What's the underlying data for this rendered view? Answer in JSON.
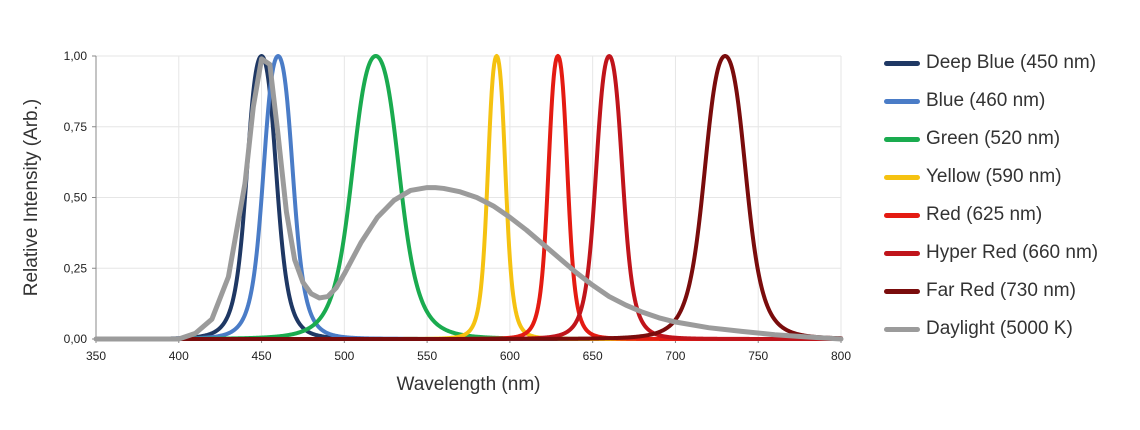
{
  "chart_data": {
    "type": "line",
    "xlabel": "Wavelength (nm)",
    "ylabel": "Relative Intensity (Arb.)",
    "xlim": [
      350,
      800
    ],
    "ylim": [
      0,
      1
    ],
    "x_ticks": [
      350,
      400,
      450,
      500,
      550,
      600,
      650,
      700,
      750,
      800
    ],
    "y_ticks": [
      "0,00",
      "0,25",
      "0,50",
      "0,75",
      "1,00"
    ],
    "grid": true,
    "legend_position": "right",
    "series": [
      {
        "name": "Deep Blue (450 nm)",
        "color": "#1f3864",
        "peak": 450,
        "fwhm": 20
      },
      {
        "name": "Blue (460 nm)",
        "color": "#4a7cc7",
        "peak": 460,
        "fwhm": 20
      },
      {
        "name": "Green (520 nm)",
        "color": "#1aab4f",
        "peak": 519,
        "fwhm": 32
      },
      {
        "name": "Yellow (590 nm)",
        "color": "#f5c211",
        "peak": 592,
        "fwhm": 12
      },
      {
        "name": "Red (625 nm)",
        "color": "#e41b12",
        "peak": 629,
        "fwhm": 13
      },
      {
        "name": "Hyper Red (660 nm)",
        "color": "#c0141b",
        "peak": 660,
        "fwhm": 18
      },
      {
        "name": "Far Red (730 nm)",
        "color": "#7a0c0c",
        "peak": 730,
        "fwhm": 28
      },
      {
        "name": "Daylight (5000 K)",
        "color": "#9b9b9b",
        "x": [
          350,
          400,
          410,
          420,
          430,
          440,
          445,
          450,
          455,
          460,
          465,
          470,
          475,
          480,
          485,
          490,
          495,
          500,
          510,
          520,
          530,
          540,
          550,
          555,
          560,
          570,
          580,
          590,
          600,
          610,
          620,
          630,
          640,
          650,
          660,
          670,
          680,
          690,
          700,
          720,
          740,
          760,
          780,
          800
        ],
        "y": [
          0.0,
          0.0,
          0.02,
          0.07,
          0.22,
          0.55,
          0.82,
          0.99,
          0.97,
          0.72,
          0.45,
          0.28,
          0.2,
          0.16,
          0.145,
          0.15,
          0.18,
          0.23,
          0.34,
          0.43,
          0.49,
          0.525,
          0.535,
          0.535,
          0.532,
          0.52,
          0.5,
          0.47,
          0.43,
          0.385,
          0.335,
          0.285,
          0.235,
          0.19,
          0.15,
          0.12,
          0.095,
          0.075,
          0.06,
          0.04,
          0.027,
          0.015,
          0.007,
          0.0
        ]
      }
    ]
  }
}
